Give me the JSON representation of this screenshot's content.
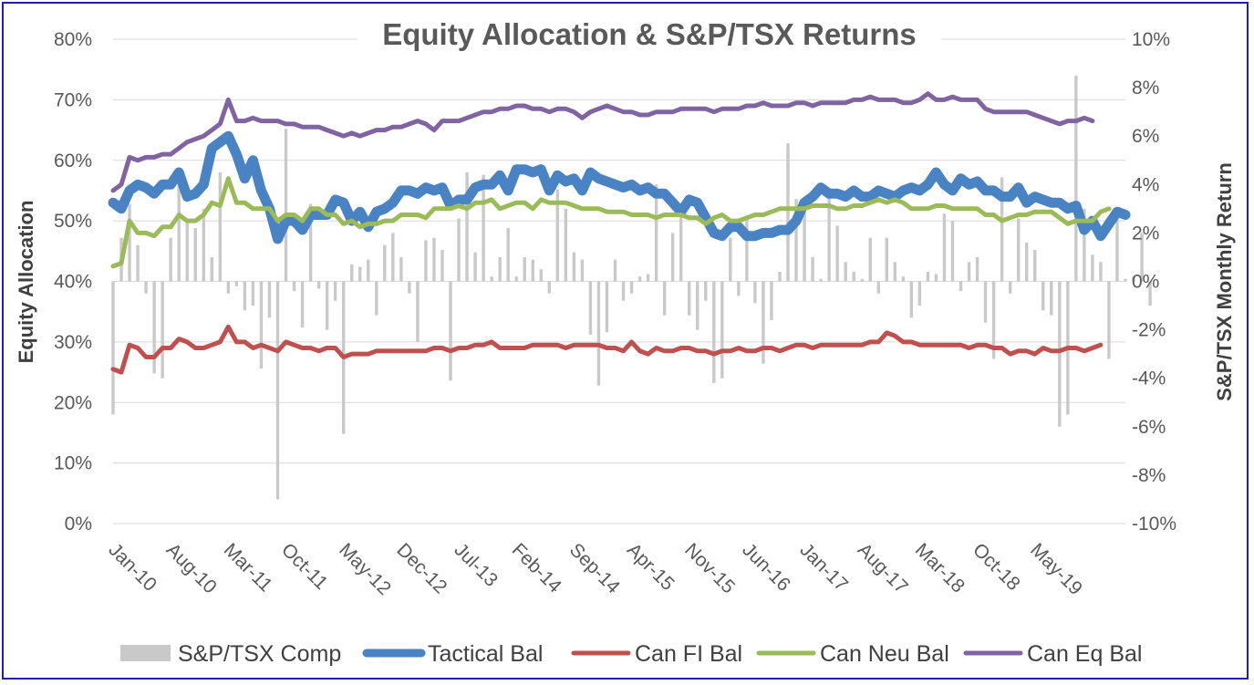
{
  "chart_data": {
    "type": "line",
    "title": "Equity Allocation & S&P/TSX Returns",
    "ylabel": "Equity Allocation",
    "y2label": "S&P/TSX Monthly Return",
    "ylim": [
      0,
      80
    ],
    "y2lim": [
      -10,
      10
    ],
    "yticks": [
      "0%",
      "10%",
      "20%",
      "30%",
      "40%",
      "50%",
      "60%",
      "70%",
      "80%"
    ],
    "y2ticks": [
      "-10%",
      "-8%",
      "-6%",
      "-4%",
      "-2%",
      "0%",
      "2%",
      "4%",
      "6%",
      "8%",
      "10%"
    ],
    "x_labels": [
      "Jan-10",
      "Aug-10",
      "Mar-11",
      "Oct-11",
      "May-12",
      "Dec-12",
      "Jul-13",
      "Feb-14",
      "Sep-14",
      "Apr-15",
      "Nov-15",
      "Jun-16",
      "Jan-17",
      "Aug-17",
      "Mar-18",
      "Oct-18",
      "May-19"
    ],
    "grid": true,
    "legend_position": "bottom",
    "bars": {
      "name": "S&P/TSX Comp",
      "axis": "y2",
      "color": "#c9c9c9",
      "values": [
        -5.5,
        1.8,
        3.2,
        1.5,
        -0.5,
        -3.8,
        -4.0,
        1.8,
        4.0,
        2.5,
        2.2,
        3.0,
        1.0,
        4.5,
        -0.5,
        -0.2,
        -1.2,
        -1.0,
        -3.6,
        -1.5,
        -9.0,
        6.3,
        -0.4,
        -1.9,
        3.2,
        -0.3,
        -2.0,
        -0.8,
        -6.3,
        0.7,
        0.6,
        0.9,
        -1.4,
        1.5,
        2.0,
        1.0,
        -0.5,
        -2.5,
        1.7,
        1.8,
        1.3,
        -4.1,
        2.6,
        4.5,
        1.2,
        4.4,
        0.2,
        1.0,
        2.2,
        0.2,
        1.0,
        0.9,
        0.5,
        -0.5,
        3.8,
        3.0,
        1.2,
        0.9,
        -2.2,
        -4.3,
        -2.1,
        0.9,
        -0.8,
        -0.5,
        0.2,
        0.3,
        4.0,
        -1.4,
        2.0,
        3.2,
        -1.4,
        -2.0,
        -0.8,
        -4.2,
        -4.0,
        1.8,
        -0.6,
        2.7,
        -0.9,
        -3.4,
        -1.6,
        0.4,
        5.7,
        3.4,
        3.4,
        1.0,
        0.1,
        3.7,
        2.3,
        0.8,
        0.4,
        0.1,
        1.8,
        -0.5,
        1.8,
        0.8,
        0.2,
        -1.5,
        -1.0,
        0.4,
        0.3,
        2.8,
        2.5,
        -0.4,
        0.8,
        1.0,
        -1.7,
        -3.2,
        4.3,
        -0.5,
        2.6,
        1.6,
        1.3,
        -1.2,
        -1.4,
        -6.0,
        -5.5,
        8.5,
        3.0,
        1.1,
        0.8,
        -3.2,
        2.6,
        0.1,
        0.2,
        2.0,
        -1.0
      ]
    },
    "series": [
      {
        "name": "Tactical Bal",
        "color": "#4a83c4",
        "width": 11,
        "values": [
          53,
          52,
          55,
          56,
          55.5,
          54.5,
          56,
          56,
          58,
          54,
          54.5,
          56,
          62,
          63,
          64,
          61,
          57,
          60,
          55,
          52,
          47,
          50,
          50,
          48.5,
          51,
          51,
          51,
          53.5,
          53,
          50,
          51.5,
          49,
          51.5,
          52,
          53,
          55,
          55,
          54.5,
          55.5,
          55,
          55.5,
          52.5,
          53.5,
          53.5,
          55.5,
          56,
          56,
          57.5,
          55,
          58.5,
          58.5,
          58,
          58.5,
          55,
          57.5,
          56.5,
          57,
          55,
          58,
          57,
          56.5,
          56,
          55.5,
          56,
          55,
          55.5,
          54.5,
          54.5,
          53,
          51.5,
          53.5,
          53,
          50.5,
          48,
          47.5,
          49,
          49,
          47.5,
          47.5,
          48,
          48,
          48.5,
          48.5,
          50,
          53,
          54,
          55.5,
          54.5,
          54.5,
          54,
          55,
          54,
          54,
          55,
          54.5,
          54,
          55,
          55.5,
          55,
          56,
          58,
          56,
          55,
          57,
          56,
          56.5,
          55,
          55,
          54,
          54,
          55.5,
          53,
          54,
          53.5,
          53,
          53,
          52,
          52.5,
          48.5,
          50,
          47.5,
          49.5,
          51.5,
          51
        ]
      },
      {
        "name": "Can FI Bal",
        "color": "#c0504d",
        "width": 5,
        "values": [
          25.5,
          25,
          29.5,
          29,
          27.5,
          27.5,
          29,
          29,
          30.5,
          30,
          29,
          29,
          29.5,
          30,
          32.5,
          30,
          30,
          29,
          29.5,
          29,
          28.5,
          30,
          29.5,
          29,
          29,
          28.5,
          29,
          29,
          27.5,
          28,
          28,
          28,
          28.5,
          28.5,
          28.5,
          28.5,
          28.5,
          28.5,
          28.5,
          29,
          29,
          28.5,
          29,
          29,
          29.5,
          29.5,
          30,
          29,
          29,
          29,
          29,
          29.5,
          29.5,
          29.5,
          29.5,
          29,
          29.5,
          29.5,
          29.5,
          29.5,
          29,
          29,
          28.5,
          30,
          28.5,
          28,
          29,
          28.5,
          28.5,
          29,
          29,
          28.5,
          28.5,
          28,
          28.5,
          28.5,
          29,
          28.5,
          28.5,
          29,
          29,
          28.5,
          29,
          29.5,
          29.5,
          29,
          29.5,
          29.5,
          29.5,
          29.5,
          29.5,
          29.5,
          30,
          30,
          31.5,
          31,
          30,
          30,
          29.5,
          29.5,
          29.5,
          29.5,
          29.5,
          29.5,
          29,
          29.5,
          29.5,
          29,
          29,
          28,
          28.5,
          28.5,
          28,
          29,
          28.5,
          28.5,
          29,
          29,
          28.5,
          29,
          29.5
        ]
      },
      {
        "name": "Can Neu Bal",
        "color": "#9bbb59",
        "width": 5,
        "values": [
          42.5,
          43,
          50,
          48,
          48,
          47.5,
          49,
          49,
          51,
          50,
          50,
          51,
          53,
          52.5,
          57,
          53,
          53,
          52,
          52,
          52,
          50,
          51,
          51,
          50,
          52,
          52,
          51,
          51,
          49.5,
          50,
          49,
          49.5,
          49.5,
          50,
          50,
          51,
          51,
          51,
          50.5,
          52,
          52,
          52,
          52.5,
          52,
          53,
          53,
          53.5,
          52,
          52.5,
          53,
          53,
          52,
          53.5,
          53,
          53,
          53,
          52.5,
          52,
          52,
          52,
          51.5,
          51.5,
          51.5,
          51,
          51,
          51,
          50.5,
          51,
          51,
          51,
          50.5,
          50.5,
          49.5,
          50.5,
          51,
          50,
          50,
          50.5,
          51,
          51,
          51.5,
          52,
          52,
          52,
          52,
          52.5,
          52.5,
          52.5,
          52,
          52,
          52.5,
          52.5,
          53,
          53.5,
          53,
          53.5,
          53,
          52,
          52,
          52,
          52.5,
          52.5,
          52,
          52,
          52,
          52,
          51,
          51,
          50,
          50.5,
          51,
          51,
          51.5,
          51.5,
          51.5,
          50.5,
          49.5,
          50,
          50,
          50,
          51.5,
          52
        ]
      },
      {
        "name": "Can Eq Bal",
        "color": "#8064a2",
        "width": 5,
        "values": [
          55,
          56,
          60.5,
          60,
          60.5,
          60.5,
          61,
          61,
          62,
          63,
          63.5,
          64,
          65,
          66,
          70,
          66.5,
          66.5,
          67,
          66.5,
          66.5,
          66.5,
          66,
          66,
          65.5,
          65.5,
          65.5,
          65,
          64.5,
          64,
          64.5,
          64,
          64.5,
          65,
          65,
          65.5,
          65.5,
          66,
          66.5,
          66,
          65,
          66.5,
          66.5,
          66.5,
          67,
          67.5,
          68,
          68,
          68.5,
          68.5,
          69,
          69,
          68.5,
          68.5,
          68,
          68.5,
          68.5,
          68,
          67,
          68,
          68.5,
          69,
          68.5,
          68,
          68,
          67.5,
          67.5,
          68,
          68,
          68,
          68.5,
          68.5,
          68.5,
          68.5,
          68,
          68.5,
          68.5,
          68.5,
          69,
          69,
          69.5,
          69,
          69,
          69,
          69.5,
          69.5,
          69,
          69.5,
          69.5,
          69.5,
          69.5,
          70,
          70,
          70.5,
          70,
          70,
          70,
          69.5,
          69.5,
          70,
          71,
          70,
          70,
          70.5,
          70,
          70,
          70,
          68.5,
          68,
          68,
          68,
          68,
          68,
          67.5,
          67,
          66.5,
          66,
          66.5,
          66.5,
          67,
          66.5
        ]
      }
    ]
  }
}
